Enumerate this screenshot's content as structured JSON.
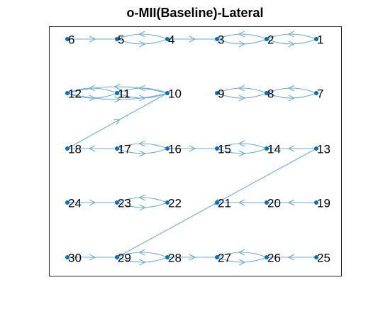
{
  "title": "o-MII(Baseline)-Lateral",
  "nodes": [
    "6",
    "5",
    "4",
    "3",
    "2",
    "1",
    "12",
    "11",
    "10",
    "9",
    "8",
    "7",
    "18",
    "17",
    "16",
    "15",
    "14",
    "13",
    "24",
    "23",
    "22",
    "21",
    "20",
    "19",
    "30",
    "29",
    "28",
    "27",
    "26",
    "25"
  ]
}
